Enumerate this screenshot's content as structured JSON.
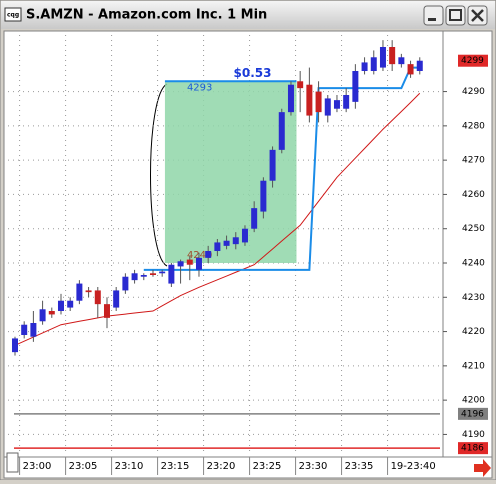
{
  "chart_data": {
    "type": "candlestick",
    "title": "S.AMZN - Amazon.com Inc. 1 Min",
    "open": [
      4214,
      4219,
      4218.5,
      4223,
      4226,
      4226,
      4227,
      4229,
      4232,
      4232,
      4228,
      4227,
      4232,
      4235,
      4236,
      4237,
      4237,
      4234,
      4239,
      4241,
      4238,
      4241.5,
      4243.5,
      4245,
      4245.5,
      4246,
      4250,
      4255,
      4264,
      4273,
      4284,
      4293,
      4292,
      4290,
      4283,
      4285,
      4285,
      4287,
      4296,
      4296,
      4297,
      4303,
      4298,
      4298,
      4296
    ],
    "high": [
      4218.5,
      4223,
      4226,
      4229,
      4227,
      4231,
      4230,
      4235,
      4233,
      4233,
      4230,
      4233,
      4237,
      4238,
      4237,
      4238,
      4238,
      4240,
      4241,
      4242,
      4243,
      4245,
      4247,
      4248,
      4249,
      4251,
      4258,
      4265,
      4274,
      4285,
      4293,
      4296,
      4297,
      4293,
      4289,
      4289,
      4291,
      4298,
      4300,
      4302,
      4305,
      4305,
      4301,
      4299,
      4300
    ],
    "low": [
      4213,
      4218,
      4217,
      4222,
      4224,
      4225,
      4226,
      4228,
      4230,
      4224,
      4221,
      4226,
      4231,
      4234,
      4235,
      4236,
      4236,
      4233,
      4234,
      4235,
      4236,
      4240,
      4242,
      4244,
      4244,
      4245,
      4249,
      4253,
      4262,
      4272,
      4283,
      4284,
      4281,
      4281,
      4281,
      4284,
      4284,
      4285,
      4295,
      4295,
      4296,
      4296,
      4297,
      4294,
      4295
    ],
    "close": [
      4218,
      4222,
      4222.5,
      4226.5,
      4225,
      4229,
      4229,
      4234,
      4231.5,
      4228,
      4224,
      4232,
      4236,
      4237,
      4236.5,
      4236.5,
      4237.5,
      4239.5,
      4240.5,
      4239.5,
      4241.5,
      4243.5,
      4246,
      4246.5,
      4247.5,
      4250,
      4256,
      4264,
      4273,
      4284,
      4292,
      4291,
      4283,
      4284,
      4288,
      4287.5,
      4289,
      4296,
      4298.5,
      4300,
      4303,
      4298,
      4300,
      4295,
      4299
    ],
    "up_color": "#2a2ad0",
    "down_color": "#c82020",
    "series": [
      {
        "color": "#d01818",
        "values": [
          4216,
          4217.2,
          4218.4,
          4219.6,
          4220.8,
          4222,
          4222.5,
          4223,
          4223.5,
          4224,
          4224.5,
          4224.8,
          4225.1,
          4225.4,
          4225.7,
          4226,
          4227.5,
          4229,
          4230.5,
          4231.7,
          4232.9,
          4234,
          4235.1,
          4236.2,
          4237.3,
          4238.4,
          4239.5,
          4241.8,
          4244.1,
          4246.4,
          4248.7,
          4251,
          4254.5,
          4258,
          4261.5,
          4265,
          4267.8,
          4270.6,
          4273.4,
          4276.2,
          4279,
          4281.6,
          4284.2,
          4286.8,
          4289.5
        ]
      },
      {
        "color": "#1a8ce8",
        "values": [
          null,
          null,
          null,
          null,
          null,
          null,
          null,
          null,
          null,
          null,
          null,
          null,
          null,
          null,
          4238,
          4238,
          4238,
          4238,
          4238,
          4238,
          4238,
          4238,
          4238,
          4238,
          4238,
          4238,
          4238,
          4238,
          4238,
          4238,
          4238,
          4238,
          4238,
          4291,
          4291,
          4291,
          4291,
          4291,
          4291,
          4291,
          4291,
          4291,
          4291,
          4297,
          4297
        ]
      }
    ],
    "measure": {
      "start": 16.3,
      "end": 30.6,
      "high": 4293,
      "low": 4240,
      "label": "$0.53",
      "color": "#8fd6a8"
    },
    "levels": [
      {
        "value": 4299,
        "color": "#e02828",
        "line": false
      },
      {
        "value": 4196,
        "color": "#808080",
        "line": true
      },
      {
        "value": 4186,
        "color": "#e02828",
        "line": true
      }
    ],
    "xlim": [
      -0.76,
      46.2
    ],
    "ylim": [
      4184,
      4306.5
    ],
    "yticks": [
      4190,
      4200,
      4210,
      4220,
      4230,
      4240,
      4250,
      4260,
      4270,
      4280,
      4290
    ],
    "xticks": [
      {
        "value": 0.5,
        "label": "23:00"
      },
      {
        "value": 5.5,
        "label": "23:05"
      },
      {
        "value": 10.5,
        "label": "23:10"
      },
      {
        "value": 15.5,
        "label": "23:15"
      },
      {
        "value": 20.5,
        "label": "23:20"
      },
      {
        "value": 25.5,
        "label": "23:25"
      },
      {
        "value": 30.5,
        "label": "23:30"
      },
      {
        "value": 35.5,
        "label": "23:35"
      },
      {
        "value": 40.5,
        "label": "19-23:40"
      }
    ],
    "grid": true
  }
}
